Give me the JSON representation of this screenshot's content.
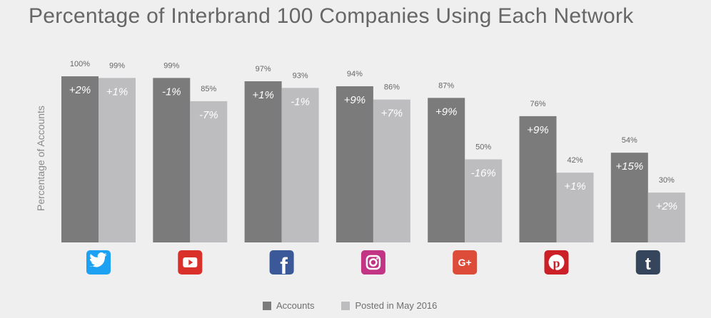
{
  "chart_data": {
    "type": "bar",
    "title": "Percentage of Interbrand 100 Companies Using Each Network",
    "ylabel": "Percentage of Accounts",
    "xlabel": "",
    "ylim": [
      0,
      100
    ],
    "grid": false,
    "legend_position": "bottom",
    "categories": [
      "Twitter",
      "YouTube",
      "Facebook",
      "Instagram",
      "Google+",
      "Pinterest",
      "Tumblr"
    ],
    "series": [
      {
        "name": "Accounts",
        "color": "#7b7b7c",
        "values": [
          100,
          99,
          97,
          94,
          87,
          76,
          54
        ],
        "value_labels": [
          "100%",
          "99%",
          "97%",
          "94%",
          "87%",
          "76%",
          "54%"
        ],
        "change_labels": [
          "+2%",
          "-1%",
          "+1%",
          "+9%",
          "+9%",
          "+9%",
          "+15%"
        ]
      },
      {
        "name": "Posted in May 2016",
        "color": "#bdbdc0",
        "values": [
          99,
          85,
          93,
          86,
          50,
          42,
          30
        ],
        "value_labels": [
          "99%",
          "85%",
          "93%",
          "86%",
          "50%",
          "42%",
          "30%"
        ],
        "change_labels": [
          "+1%",
          "-7%",
          "-1%",
          "+7%",
          "-16%",
          "+1%",
          "+2%"
        ]
      }
    ],
    "icons": [
      {
        "name": "twitter-icon",
        "color": "#1da1f2"
      },
      {
        "name": "youtube-icon",
        "color": "#d9302a"
      },
      {
        "name": "facebook-icon",
        "color": "#3b5998"
      },
      {
        "name": "instagram-icon",
        "color": "#c13584"
      },
      {
        "name": "google-plus-icon",
        "color": "#dd4b39"
      },
      {
        "name": "pinterest-icon",
        "color": "#cb2027"
      },
      {
        "name": "tumblr-icon",
        "color": "#35465c"
      }
    ]
  }
}
